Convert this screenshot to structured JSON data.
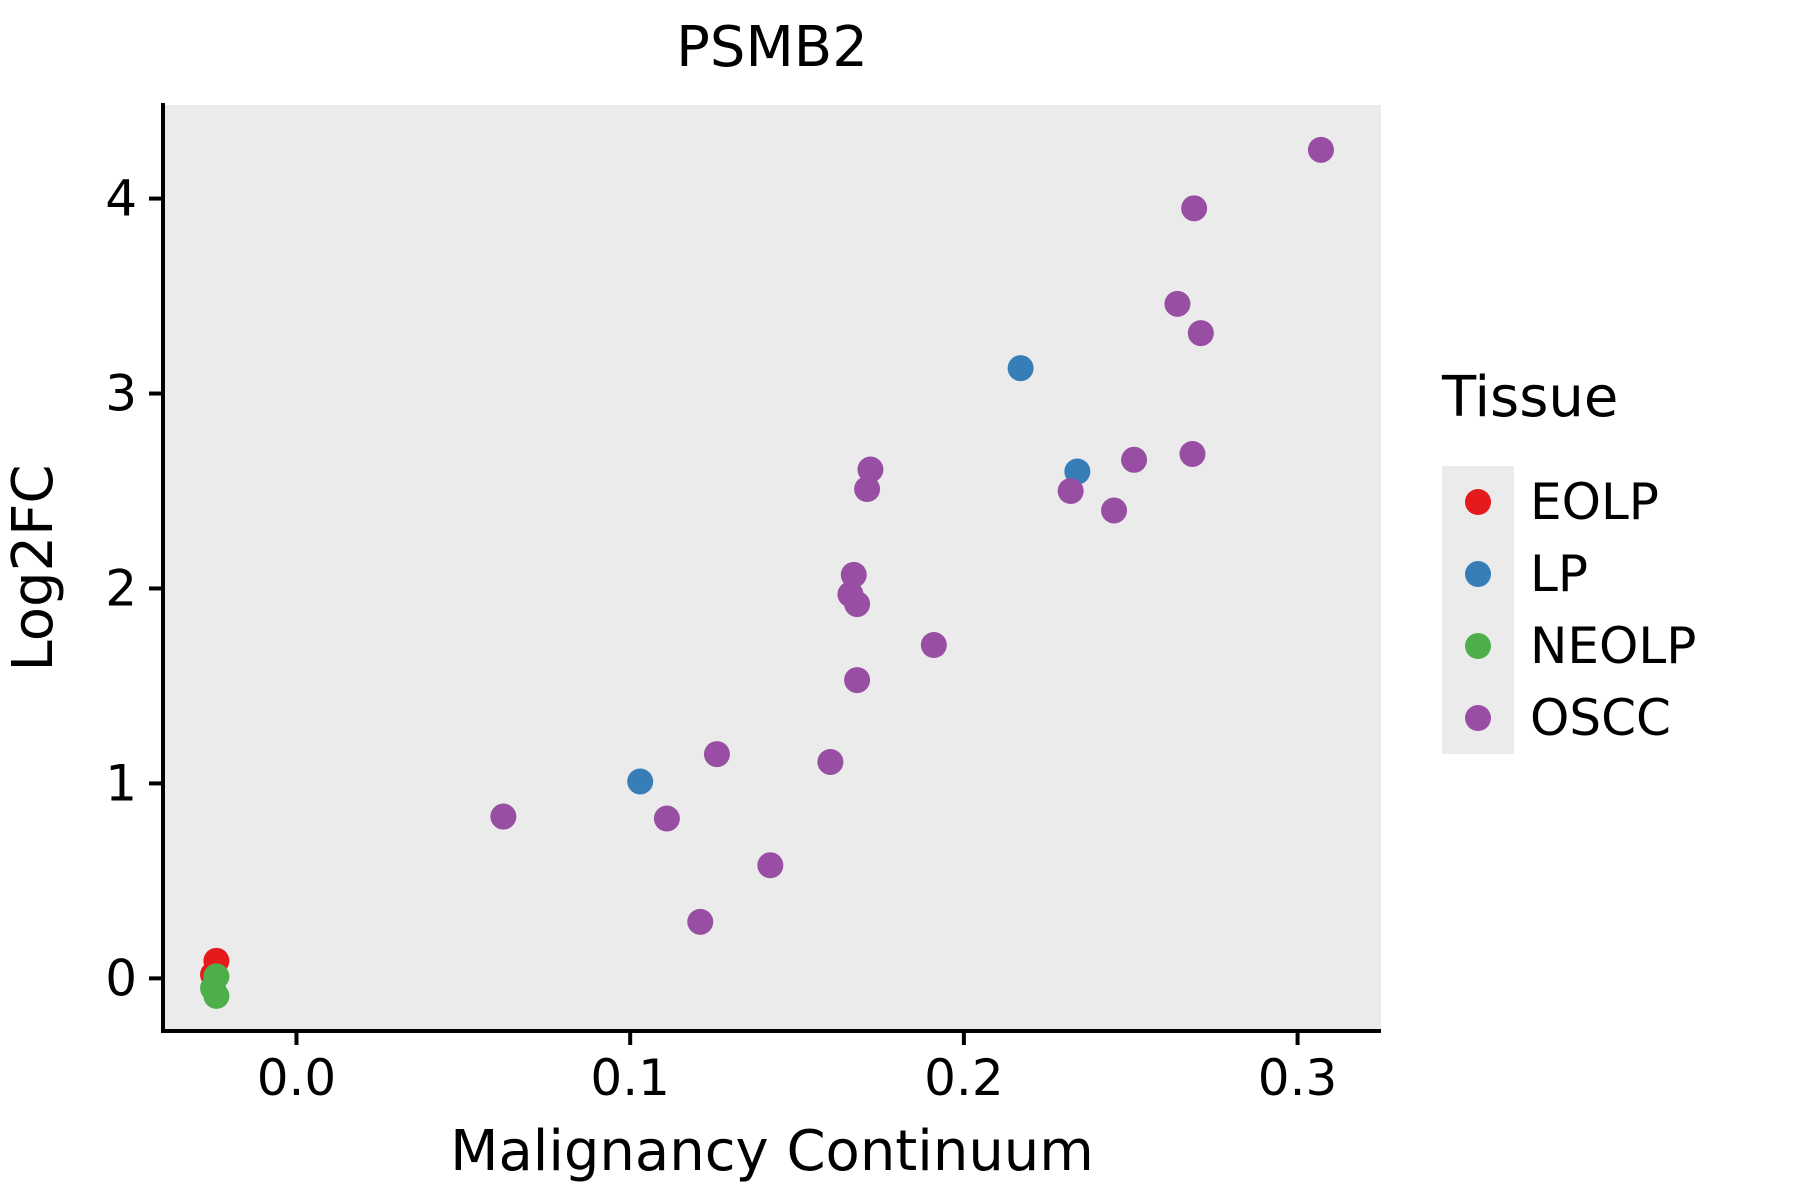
{
  "chart_data": {
    "type": "scatter",
    "title": "PSMB2",
    "xlabel": "Malignancy Continuum",
    "ylabel": "Log2FC",
    "xlim": [
      -0.04,
      0.325
    ],
    "ylim": [
      -0.27,
      4.48
    ],
    "grid": false,
    "point_radius": 13,
    "colors": {
      "panel_bg": "#EBEBEB",
      "axis": "#000000",
      "text": "#000000"
    },
    "x_ticks": [
      {
        "v": 0.0,
        "label": "0.0"
      },
      {
        "v": 0.1,
        "label": "0.1"
      },
      {
        "v": 0.2,
        "label": "0.2"
      },
      {
        "v": 0.3,
        "label": "0.3"
      }
    ],
    "y_ticks": [
      {
        "v": 0,
        "label": "0"
      },
      {
        "v": 1,
        "label": "1"
      },
      {
        "v": 2,
        "label": "2"
      },
      {
        "v": 3,
        "label": "3"
      },
      {
        "v": 4,
        "label": "4"
      }
    ],
    "series": [
      {
        "name": "EOLP",
        "color": "#E41A1C",
        "points": [
          [
            -0.024,
            0.09
          ],
          [
            -0.025,
            0.02
          ]
        ]
      },
      {
        "name": "LP",
        "color": "#377EB8",
        "points": [
          [
            0.103,
            1.01
          ],
          [
            0.217,
            3.13
          ],
          [
            0.234,
            2.6
          ]
        ]
      },
      {
        "name": "NEOLP",
        "color": "#4DAF4A",
        "points": [
          [
            -0.024,
            0.01
          ],
          [
            -0.025,
            -0.05
          ],
          [
            -0.024,
            -0.09
          ]
        ]
      },
      {
        "name": "OSCC",
        "color": "#984EA3",
        "points": [
          [
            0.307,
            4.25
          ],
          [
            0.269,
            3.95
          ],
          [
            0.264,
            3.46
          ],
          [
            0.271,
            3.31
          ],
          [
            0.2685,
            2.69
          ],
          [
            0.251,
            2.66
          ],
          [
            0.172,
            2.61
          ],
          [
            0.171,
            2.51
          ],
          [
            0.232,
            2.5
          ],
          [
            0.245,
            2.4
          ],
          [
            0.167,
            2.07
          ],
          [
            0.166,
            1.97
          ],
          [
            0.168,
            1.92
          ],
          [
            0.191,
            1.71
          ],
          [
            0.168,
            1.53
          ],
          [
            0.126,
            1.15
          ],
          [
            0.16,
            1.11
          ],
          [
            0.062,
            0.83
          ],
          [
            0.111,
            0.82
          ],
          [
            0.142,
            0.58
          ],
          [
            0.121,
            0.29
          ]
        ]
      }
    ]
  },
  "legend": {
    "title": "Tissue",
    "key_bg": "#EBEBEB",
    "entries": [
      {
        "label": "EOLP",
        "color": "#E41A1C"
      },
      {
        "label": "LP",
        "color": "#377EB8"
      },
      {
        "label": "NEOLP",
        "color": "#4DAF4A"
      },
      {
        "label": "OSCC",
        "color": "#984EA3"
      }
    ]
  }
}
